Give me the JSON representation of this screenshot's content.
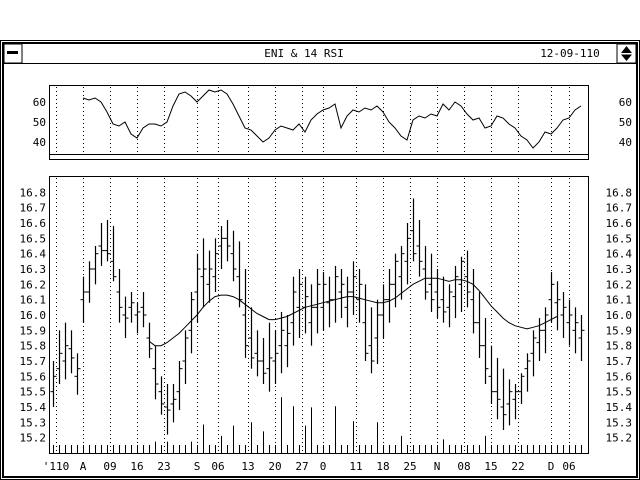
{
  "window": {
    "title": "ENI & 14 RSI",
    "date": "12-09-110",
    "menu_glyph": "▬",
    "maximize_glyph": "▲▼"
  },
  "chart_data": [
    {
      "type": "line",
      "panel": "rsi",
      "ylim": [
        34,
        68
      ],
      "yticks": [
        "60",
        "50",
        "40"
      ],
      "x": [
        5,
        6,
        7,
        8,
        9,
        10,
        11,
        12,
        13,
        14,
        15,
        16,
        17,
        18,
        19,
        20,
        21,
        22,
        23,
        24,
        25,
        26,
        27,
        28,
        29,
        30,
        31,
        32,
        33,
        34,
        35,
        36,
        37,
        38,
        39,
        40,
        41,
        42,
        43,
        44,
        45,
        46,
        47,
        48,
        49,
        50,
        51,
        52,
        53,
        54,
        55,
        56,
        57,
        58,
        59,
        60,
        61,
        62,
        63,
        64,
        65,
        66,
        67,
        68,
        69,
        70,
        71,
        72,
        73,
        74,
        75,
        76,
        77,
        78,
        79,
        80,
        81,
        82,
        83,
        84,
        85,
        86,
        87,
        88
      ],
      "values": [
        62,
        61,
        62,
        60,
        55,
        49,
        48,
        50,
        44,
        42,
        47,
        49,
        49,
        48,
        50,
        58,
        64,
        65,
        63,
        60,
        63,
        66,
        65,
        66,
        64,
        59,
        53,
        47,
        46,
        43,
        40,
        42,
        46,
        48,
        47,
        46,
        49,
        45,
        51,
        54,
        56,
        57,
        59,
        47,
        53,
        56,
        55,
        57,
        56,
        58,
        55,
        50,
        47,
        43,
        41,
        51,
        53,
        52,
        54,
        53,
        59,
        56,
        60,
        58,
        54,
        51,
        52,
        47,
        48,
        53,
        52,
        49,
        47,
        43,
        41,
        37,
        40,
        45,
        44,
        47,
        51,
        52,
        56,
        58
      ]
    },
    {
      "type": "ohlc",
      "panel": "price",
      "ylim": [
        15.1,
        16.9
      ],
      "yticks": [
        "16.8",
        "16.7",
        "16.6",
        "16.5",
        "16.4",
        "16.3",
        "16.2",
        "16.1",
        "16.0",
        "15.9",
        "15.8",
        "15.7",
        "15.6",
        "15.5",
        "15.4",
        "15.3",
        "15.2"
      ],
      "x": [
        0,
        1,
        2,
        3,
        4,
        5,
        6,
        7,
        8,
        9,
        10,
        11,
        12,
        13,
        14,
        15,
        16,
        17,
        18,
        19,
        20,
        21,
        22,
        23,
        24,
        25,
        26,
        27,
        28,
        29,
        30,
        31,
        32,
        33,
        34,
        35,
        36,
        37,
        38,
        39,
        40,
        41,
        42,
        43,
        44,
        45,
        46,
        47,
        48,
        49,
        50,
        51,
        52,
        53,
        54,
        55,
        56,
        57,
        58,
        59,
        60,
        61,
        62,
        63,
        64,
        65,
        66,
        67,
        68,
        69,
        70,
        71,
        72,
        73,
        74,
        75,
        76,
        77,
        78,
        79,
        80,
        81,
        82,
        83,
        84,
        85,
        86,
        87,
        88
      ],
      "high": [
        15.7,
        15.9,
        15.95,
        15.9,
        15.75,
        16.25,
        16.35,
        16.45,
        16.6,
        16.62,
        16.58,
        16.3,
        16.12,
        16.15,
        16.08,
        16.15,
        15.95,
        15.8,
        15.6,
        15.55,
        15.55,
        15.7,
        15.9,
        16.15,
        16.4,
        16.5,
        16.42,
        16.5,
        16.58,
        16.62,
        16.55,
        16.48,
        16.3,
        16.05,
        15.9,
        15.85,
        15.95,
        15.9,
        16.02,
        16.0,
        16.25,
        16.3,
        16.25,
        16.2,
        16.3,
        16.28,
        16.25,
        16.32,
        16.3,
        16.25,
        16.35,
        16.3,
        16.2,
        16.05,
        16.1,
        16.2,
        16.3,
        16.4,
        16.45,
        16.6,
        16.76,
        16.62,
        16.45,
        16.4,
        16.3,
        16.25,
        16.2,
        16.32,
        16.38,
        16.42,
        16.3,
        16.15,
        15.98,
        15.8,
        15.72,
        15.65,
        15.58,
        15.55,
        15.62,
        15.75,
        15.9,
        15.98,
        16.05,
        16.28,
        16.22,
        16.15,
        16.1,
        16.05,
        16.0
      ],
      "low": [
        15.4,
        15.55,
        15.58,
        15.62,
        15.48,
        15.95,
        16.08,
        16.2,
        16.32,
        16.35,
        16.22,
        15.95,
        15.85,
        15.95,
        15.88,
        15.92,
        15.72,
        15.45,
        15.35,
        15.22,
        15.3,
        15.38,
        15.55,
        15.75,
        15.95,
        16.05,
        16.08,
        16.15,
        16.3,
        16.35,
        16.22,
        16.05,
        15.72,
        15.65,
        15.6,
        15.55,
        15.5,
        15.55,
        15.62,
        15.66,
        15.8,
        15.85,
        15.88,
        15.8,
        15.88,
        15.9,
        15.92,
        15.95,
        15.98,
        15.92,
        16.0,
        15.95,
        15.7,
        15.62,
        15.68,
        15.85,
        15.95,
        16.05,
        16.1,
        16.2,
        16.35,
        16.25,
        16.1,
        16.02,
        15.98,
        15.95,
        15.92,
        15.98,
        16.02,
        16.05,
        15.88,
        15.72,
        15.55,
        15.42,
        15.32,
        15.25,
        15.28,
        15.32,
        15.42,
        15.5,
        15.6,
        15.7,
        15.75,
        15.95,
        15.9,
        15.85,
        15.8,
        15.75,
        15.7
      ],
      "open": [
        15.5,
        15.65,
        15.7,
        15.78,
        15.6,
        16.1,
        16.15,
        16.3,
        16.45,
        16.42,
        16.35,
        16.15,
        16.0,
        16.05,
        16.0,
        16.05,
        15.85,
        15.65,
        15.5,
        15.4,
        15.42,
        15.5,
        15.7,
        15.9,
        16.15,
        16.25,
        16.2,
        16.25,
        16.45,
        16.5,
        16.4,
        16.25,
        16.0,
        15.85,
        15.75,
        15.7,
        15.65,
        15.7,
        15.8,
        15.8,
        15.95,
        16.05,
        16.05,
        15.95,
        16.05,
        16.05,
        16.08,
        16.1,
        16.15,
        16.05,
        16.15,
        16.1,
        15.95,
        15.8,
        15.85,
        16.0,
        16.1,
        16.2,
        16.25,
        16.35,
        16.55,
        16.45,
        16.3,
        16.2,
        16.15,
        16.1,
        16.05,
        16.12,
        16.2,
        16.25,
        16.1,
        15.95,
        15.8,
        15.6,
        15.5,
        15.4,
        15.42,
        15.45,
        15.5,
        15.65,
        15.75,
        15.82,
        15.9,
        16.1,
        16.08,
        16.0,
        15.95,
        15.9,
        15.85
      ],
      "close": [
        15.6,
        15.75,
        15.8,
        15.72,
        15.65,
        16.15,
        16.3,
        16.4,
        16.42,
        16.4,
        16.25,
        16.05,
        15.98,
        16.08,
        16.02,
        16.0,
        15.78,
        15.55,
        15.42,
        15.38,
        15.45,
        15.65,
        15.85,
        16.1,
        16.3,
        16.3,
        16.3,
        16.4,
        16.5,
        16.45,
        16.3,
        16.1,
        15.8,
        15.72,
        15.7,
        15.62,
        15.72,
        15.75,
        15.9,
        15.88,
        16.15,
        16.2,
        16.12,
        16.05,
        16.2,
        16.2,
        16.1,
        16.25,
        16.2,
        16.15,
        16.25,
        16.2,
        15.75,
        15.7,
        16.0,
        16.1,
        16.2,
        16.35,
        16.4,
        16.5,
        16.4,
        16.35,
        16.15,
        16.1,
        16.05,
        16.02,
        16.15,
        16.25,
        16.35,
        16.15,
        15.95,
        15.8,
        15.65,
        15.5,
        15.45,
        15.35,
        15.5,
        15.5,
        15.6,
        15.7,
        15.85,
        15.9,
        16.0,
        16.2,
        16.1,
        16.05,
        16.0,
        15.95,
        15.9
      ],
      "ma_x": [
        16,
        17,
        18,
        19,
        20,
        21,
        22,
        23,
        24,
        25,
        26,
        27,
        28,
        29,
        30,
        31,
        32,
        33,
        34,
        35,
        36,
        37,
        38,
        39,
        40,
        41,
        42,
        43,
        44,
        45,
        46,
        47,
        48,
        49,
        50,
        51,
        52,
        53,
        54,
        55,
        56,
        57,
        58,
        59,
        60,
        61,
        62,
        63,
        64,
        65,
        66,
        67,
        68,
        69,
        70,
        71,
        72,
        73,
        74,
        75,
        76,
        77,
        78,
        79,
        80,
        81,
        82,
        83,
        84
      ],
      "ma": [
        15.83,
        15.8,
        15.8,
        15.82,
        15.85,
        15.88,
        15.92,
        15.96,
        16.0,
        16.05,
        16.09,
        16.12,
        16.13,
        16.13,
        16.12,
        16.1,
        16.07,
        16.04,
        16.01,
        15.99,
        15.97,
        15.97,
        15.98,
        15.99,
        16.01,
        16.03,
        16.05,
        16.06,
        16.07,
        16.08,
        16.09,
        16.1,
        16.11,
        16.12,
        16.12,
        16.11,
        16.1,
        16.09,
        16.08,
        16.08,
        16.09,
        16.11,
        16.14,
        16.17,
        16.2,
        16.22,
        16.24,
        16.24,
        16.24,
        16.23,
        16.22,
        16.23,
        16.23,
        16.22,
        16.2,
        16.16,
        16.11,
        16.06,
        16.02,
        15.98,
        15.95,
        15.93,
        15.92,
        15.91,
        15.92,
        15.93,
        15.95,
        15.97,
        15.99
      ]
    },
    {
      "type": "bar",
      "panel": "volume",
      "ylim": [
        0,
        100
      ],
      "x": [
        0,
        1,
        2,
        3,
        4,
        5,
        6,
        7,
        8,
        9,
        10,
        11,
        12,
        13,
        14,
        15,
        16,
        17,
        18,
        19,
        20,
        21,
        22,
        23,
        24,
        25,
        26,
        27,
        28,
        29,
        30,
        31,
        32,
        33,
        34,
        35,
        36,
        37,
        38,
        39,
        40,
        41,
        42,
        43,
        44,
        45,
        46,
        47,
        48,
        49,
        50,
        51,
        52,
        53,
        54,
        55,
        56,
        57,
        58,
        59,
        60,
        61,
        62,
        63,
        64,
        65,
        66,
        67,
        68,
        69,
        70,
        71,
        72,
        73,
        74,
        75,
        76,
        77,
        78,
        79,
        80,
        81,
        82,
        83,
        84,
        85,
        86,
        87,
        88
      ],
      "values": [
        14,
        14,
        14,
        14,
        14,
        14,
        14,
        14,
        14,
        14,
        14,
        14,
        14,
        14,
        14,
        14,
        14,
        20,
        14,
        20,
        14,
        14,
        14,
        20,
        14,
        50,
        14,
        14,
        30,
        14,
        48,
        14,
        14,
        54,
        14,
        38,
        14,
        14,
        98,
        14,
        82,
        14,
        48,
        80,
        14,
        14,
        14,
        82,
        14,
        14,
        56,
        14,
        14,
        14,
        54,
        14,
        14,
        14,
        30,
        14,
        14,
        14,
        14,
        14,
        14,
        24,
        14,
        14,
        14,
        14,
        14,
        14,
        30,
        14,
        14,
        14,
        14,
        14,
        14,
        14,
        14,
        14,
        14,
        14,
        14,
        14,
        14,
        14,
        14
      ]
    }
  ],
  "x_axis": {
    "labels": [
      {
        "text": "'110",
        "x": 0.5
      },
      {
        "text": "A",
        "x": 5
      },
      {
        "text": "09",
        "x": 9.5
      },
      {
        "text": "16",
        "x": 14
      },
      {
        "text": "23",
        "x": 18.5
      },
      {
        "text": "S",
        "x": 24
      },
      {
        "text": "06",
        "x": 27.5
      },
      {
        "text": "13",
        "x": 32.5
      },
      {
        "text": "20",
        "x": 37
      },
      {
        "text": "27",
        "x": 41.5
      },
      {
        "text": "0",
        "x": 45
      },
      {
        "text": "11",
        "x": 50.5
      },
      {
        "text": "18",
        "x": 55
      },
      {
        "text": "25",
        "x": 59.5
      },
      {
        "text": "N",
        "x": 64
      },
      {
        "text": "08",
        "x": 68.5
      },
      {
        "text": "15",
        "x": 73
      },
      {
        "text": "22",
        "x": 77.5
      },
      {
        "text": "D",
        "x": 83
      },
      {
        "text": "06",
        "x": 86
      }
    ]
  }
}
